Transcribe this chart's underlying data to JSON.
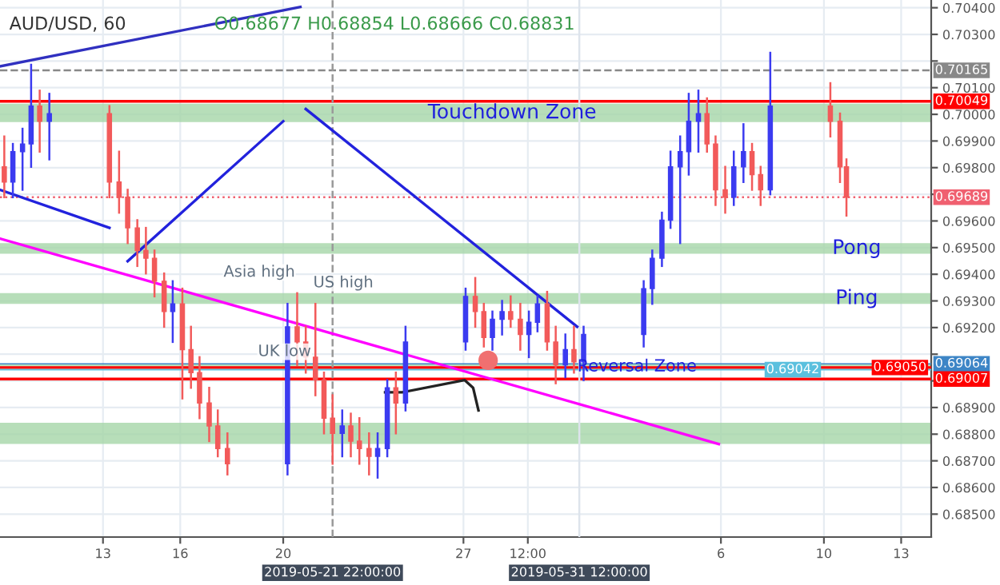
{
  "chart_data": {
    "type": "candlestick",
    "title": "AUD/USD, 60",
    "annotations": [
      "O0.68677 H0.68854 L0.68666 C0.68831",
      {
        "text": "Asia high",
        "x": "2019-05-20T11:00",
        "y": 0.69329
      },
      {
        "text": "US high",
        "x": "2019-05-21T04:00",
        "y": 0.69289
      },
      {
        "text": "UK low",
        "x": "2019-05-21T02:00",
        "y": 0.69031
      }
    ],
    "xlim": [
      "2019-05-09",
      "2019-06-14T04:00"
    ],
    "ylim": [
      0.68414,
      0.70429
    ],
    "xticks": [
      {
        "value": "2019-05-13",
        "label": "13"
      },
      {
        "value": "2019-05-16",
        "label": "16"
      },
      {
        "value": "2019-05-20",
        "label": "20"
      },
      {
        "value": "2019-05-27",
        "label": "27"
      },
      {
        "value": "2019-05-29T12:00",
        "label": "12:00"
      },
      {
        "value": "2019-06-06",
        "label": "6"
      },
      {
        "value": "2019-06-10",
        "label": "10"
      },
      {
        "value": "2019-06-13",
        "label": "13"
      }
    ],
    "yticks": [
      {
        "value": 0.685,
        "label": "0.68500"
      },
      {
        "value": 0.686,
        "label": "0.68600"
      },
      {
        "value": 0.687,
        "label": "0.68700"
      },
      {
        "value": 0.688,
        "label": "0.68800"
      },
      {
        "value": 0.689,
        "label": "0.68900"
      },
      {
        "value": 0.69,
        "label": null
      },
      {
        "value": 0.691,
        "label": null
      },
      {
        "value": 0.692,
        "label": "0.69200"
      },
      {
        "value": 0.693,
        "label": "0.69300"
      },
      {
        "value": 0.694,
        "label": "0.69400"
      },
      {
        "value": 0.695,
        "label": "0.69500"
      },
      {
        "value": 0.696,
        "label": "0.69600"
      },
      {
        "value": 0.697,
        "label": null
      },
      {
        "value": 0.698,
        "label": "0.69800"
      },
      {
        "value": 0.699,
        "label": "0.69900"
      },
      {
        "value": 0.7,
        "label": "0.70000"
      },
      {
        "value": 0.701,
        "label": "0.70100"
      },
      {
        "value": 0.702,
        "label": null
      },
      {
        "value": 0.703,
        "label": "0.70300"
      },
      {
        "value": 0.704,
        "label": "0.70400"
      }
    ],
    "grid": true,
    "legend": false,
    "bands": [
      {
        "axis": "y",
        "from": 0.69971,
        "to": 0.7004,
        "label": "Touchdown Zone",
        "color": "#a5d6a7"
      },
      {
        "axis": "y",
        "from": 0.69477,
        "to": 0.69517,
        "label": "Pong",
        "color": "#a5d6a7"
      },
      {
        "axis": "y",
        "from": 0.69289,
        "to": 0.69329,
        "label": "Ping",
        "color": "#a5d6a7"
      },
      {
        "axis": "y",
        "from": 0.69042,
        "to": 0.69064,
        "label": "Reversal Zone",
        "color": "#a5d6a7"
      },
      {
        "axis": "y",
        "from": 0.68763,
        "to": 0.68843,
        "color": "#a5d6a7"
      }
    ],
    "ref_lines": [
      {
        "axis": "y",
        "value": 0.70165,
        "label": "0.70165",
        "color": "#888888",
        "line_style": "dashed"
      },
      {
        "axis": "y",
        "value": 0.70049,
        "label": "0.70049",
        "color": "#ff0000",
        "line_style": "solid"
      },
      {
        "axis": "y",
        "value": 0.69689,
        "label": "0.69689",
        "color": "#f06070",
        "line_style": "dotted"
      },
      {
        "axis": "y",
        "value": 0.69064,
        "label": "0.69064",
        "color": "#3d85c6",
        "line_style": "solid"
      },
      {
        "axis": "y",
        "value": 0.6905,
        "label": "0.69050",
        "color": "#ff0000",
        "line_style": "solid"
      },
      {
        "axis": "y",
        "value": 0.69042,
        "label": "0.69042",
        "color": "#5bc0de",
        "line_style": "solid"
      },
      {
        "axis": "y",
        "value": 0.69007,
        "label": "0.69007",
        "color": "#ff0000",
        "line_style": "solid"
      },
      {
        "axis": "x",
        "value": "2019-05-21T22:00",
        "label": "2019-05-21 22:00:00",
        "color": "#999999",
        "line_style": "dashed"
      },
      {
        "axis": "x",
        "value": "2019-05-31T12:00",
        "label": "2019-05-31 12:00:00",
        "color": "#dde4ec",
        "line_style": "solid"
      }
    ],
    "series": [
      {
        "x": [
          "2019-05-09T04:00",
          "2019-05-09T12:00",
          "2019-05-09T21:00",
          "2019-05-10T05:00",
          "2019-05-10T13:00",
          "2019-05-10T22:00",
          "2019-05-13T06:00",
          "2019-05-13T15:00",
          "2019-05-13T23:00",
          "2019-05-14T08:00",
          "2019-05-14T16:00",
          "2019-05-15T00:00",
          "2019-05-15T09:00",
          "2019-05-15T17:00",
          "2019-05-16T02:00",
          "2019-05-16T10:00",
          "2019-05-16T18:00",
          "2019-05-17T03:00",
          "2019-05-17T11:00",
          "2019-05-17T20:00",
          "2019-05-20T04:00",
          "2019-05-20T13:00",
          "2019-05-20T21:00",
          "2019-05-21T06:00",
          "2019-05-21T14:00",
          "2019-05-21T22:00",
          "2019-05-22T07:00",
          "2019-05-22T15:00",
          "2019-05-22T23:00",
          "2019-05-23T08:00",
          "2019-05-23T16:00",
          "2019-05-24T01:00",
          "2019-05-24T09:00",
          "2019-05-24T18:00",
          "2019-05-27T02:00",
          "2019-05-27T11:00",
          "2019-05-27T19:00",
          "2019-05-28T03:00",
          "2019-05-28T12:00",
          "2019-05-28T20:00",
          "2019-05-29T05:00",
          "2019-05-29T13:00",
          "2019-05-29T21:00",
          "2019-05-30T06:00",
          "2019-05-30T14:00",
          "2019-05-30T23:00",
          "2019-05-31T07:00",
          "2019-05-31T16:00",
          "2019-06-03T00:00",
          "2019-06-03T08:00",
          "2019-06-03T17:00",
          "2019-06-04T01:00",
          "2019-06-04T10:00",
          "2019-06-04T18:00",
          "2019-06-05T03:00",
          "2019-06-05T11:00",
          "2019-06-05T19:00",
          "2019-06-06T04:00",
          "2019-06-06T12:00",
          "2019-06-06T21:00",
          "2019-06-07T05:00",
          "2019-06-07T13:00",
          "2019-06-07T22:00",
          "2019-06-10T06:00",
          "2019-06-10T15:00",
          "2019-06-10T21:00"
        ],
        "ohlc": [
          [
            0.69803,
            0.69917,
            0.69689,
            0.69746
          ],
          [
            0.69746,
            0.69889,
            0.69689,
            0.6986
          ],
          [
            0.6986,
            0.69946,
            0.69717,
            0.69889
          ],
          [
            0.69889,
            0.70186,
            0.69803,
            0.70031
          ],
          [
            0.70031,
            0.70089,
            0.6986,
            0.69974
          ],
          [
            0.69974,
            0.70077,
            0.69831,
            0.70003
          ],
          [
            0.70003,
            0.70031,
            0.69689,
            0.69746
          ],
          [
            0.69746,
            0.6986,
            0.69631,
            0.69689
          ],
          [
            0.69689,
            0.69717,
            0.69517,
            0.69574
          ],
          [
            0.69574,
            0.69603,
            0.69431,
            0.69489
          ],
          [
            0.69489,
            0.69574,
            0.69403,
            0.6946
          ],
          [
            0.6946,
            0.69489,
            0.69317,
            0.69374
          ],
          [
            0.69374,
            0.69403,
            0.69203,
            0.6926
          ],
          [
            0.6926,
            0.69374,
            0.69146,
            0.69289
          ],
          [
            0.69289,
            0.69346,
            0.68934,
            0.69117
          ],
          [
            0.69117,
            0.69203,
            0.68974,
            0.69031
          ],
          [
            0.69031,
            0.69089,
            0.6886,
            0.68917
          ],
          [
            0.68917,
            0.68974,
            0.68774,
            0.68831
          ],
          [
            0.68831,
            0.68889,
            0.68717,
            0.68746
          ],
          [
            0.68746,
            0.68803,
            0.68649,
            0.68689
          ],
          [
            0.68689,
            0.69289,
            0.68649,
            0.69203
          ],
          [
            0.69203,
            0.69329,
            0.6906,
            0.69146
          ],
          [
            0.69146,
            0.69203,
            0.69031,
            0.69089
          ],
          [
            0.69089,
            0.69289,
            0.68946,
            0.69003
          ],
          [
            0.69003,
            0.69031,
            0.68803,
            0.6886
          ],
          [
            0.6886,
            0.68946,
            0.68689,
            0.68803
          ],
          [
            0.68803,
            0.68889,
            0.68717,
            0.68831
          ],
          [
            0.68831,
            0.68877,
            0.68717,
            0.68774
          ],
          [
            0.68774,
            0.6886,
            0.68689,
            0.68746
          ],
          [
            0.68746,
            0.68803,
            0.68649,
            0.68717
          ],
          [
            0.68717,
            0.68803,
            0.68637,
            0.68746
          ],
          [
            0.68746,
            0.69003,
            0.68717,
            0.68974
          ],
          [
            0.68974,
            0.69031,
            0.68803,
            0.68917
          ],
          [
            0.68917,
            0.69203,
            0.68889,
            0.69146
          ],
          [
            0.69146,
            0.69346,
            0.69117,
            0.69317
          ],
          [
            0.69317,
            0.69386,
            0.69203,
            0.6926
          ],
          [
            0.6926,
            0.69289,
            0.69129,
            0.69163
          ],
          [
            0.69163,
            0.6926,
            0.69117,
            0.69231
          ],
          [
            0.69231,
            0.693,
            0.69174,
            0.6926
          ],
          [
            0.6926,
            0.69317,
            0.69203,
            0.69231
          ],
          [
            0.69231,
            0.69289,
            0.69117,
            0.69174
          ],
          [
            0.69174,
            0.6926,
            0.69089,
            0.6922
          ],
          [
            0.6922,
            0.69317,
            0.69186,
            0.69289
          ],
          [
            0.69289,
            0.69334,
            0.69117,
            0.69146
          ],
          [
            0.69146,
            0.69203,
            0.68991,
            0.6906
          ],
          [
            0.6906,
            0.69174,
            0.69014,
            0.69117
          ],
          [
            0.69117,
            0.69203,
            0.69031,
            0.69071
          ],
          [
            0.69071,
            0.69203,
            0.69003,
            0.69174
          ],
          [
            0.69174,
            0.69374,
            0.69129,
            0.69346
          ],
          [
            0.69346,
            0.69489,
            0.69289,
            0.6946
          ],
          [
            0.6946,
            0.69631,
            0.69431,
            0.69603
          ],
          [
            0.69603,
            0.6986,
            0.69574,
            0.69803
          ],
          [
            0.69803,
            0.69917,
            0.69517,
            0.6986
          ],
          [
            0.6986,
            0.70077,
            0.69774,
            0.69974
          ],
          [
            0.69974,
            0.70089,
            0.6986,
            0.70003
          ],
          [
            0.70003,
            0.7006,
            0.6986,
            0.69889
          ],
          [
            0.69889,
            0.69917,
            0.6966,
            0.69717
          ],
          [
            0.69717,
            0.69803,
            0.69631,
            0.69689
          ],
          [
            0.69689,
            0.6986,
            0.6966,
            0.69803
          ],
          [
            0.69803,
            0.69963,
            0.69746,
            0.6986
          ],
          [
            0.6986,
            0.69889,
            0.69717,
            0.69774
          ],
          [
            0.69774,
            0.69803,
            0.6966,
            0.69717
          ],
          [
            0.69717,
            0.70231,
            0.697,
            0.70031
          ],
          [
            0.70031,
            0.70117,
            0.69917,
            0.69974
          ],
          [
            0.69974,
            0.70003,
            0.69746,
            0.69803
          ],
          [
            0.69803,
            0.69831,
            0.6962,
            0.69689
          ]
        ],
        "colors": [
          "#f25a5a",
          "#3b3bf0",
          "#3b3bf0",
          "#3b3bf0",
          "#f25a5a",
          "#3b3bf0",
          "#f25a5a",
          "#f25a5a",
          "#f25a5a",
          "#f25a5a",
          "#f25a5a",
          "#f25a5a",
          "#f25a5a",
          "#3b3bf0",
          "#f25a5a",
          "#f25a5a",
          "#f25a5a",
          "#f25a5a",
          "#f25a5a",
          "#f25a5a",
          "#3b3bf0",
          "#f25a5a",
          "#f25a5a",
          "#f25a5a",
          "#f25a5a",
          "#f25a5a",
          "#3b3bf0",
          "#f25a5a",
          "#f25a5a",
          "#f25a5a",
          "#3b3bf0",
          "#3b3bf0",
          "#f25a5a",
          "#3b3bf0",
          "#3b3bf0",
          "#f25a5a",
          "#f25a5a",
          "#3b3bf0",
          "#3b3bf0",
          "#f25a5a",
          "#f25a5a",
          "#3b3bf0",
          "#3b3bf0",
          "#f25a5a",
          "#f25a5a",
          "#3b3bf0",
          "#f25a5a",
          "#3b3bf0",
          "#3b3bf0",
          "#3b3bf0",
          "#3b3bf0",
          "#3b3bf0",
          "#3b3bf0",
          "#3b3bf0",
          "#3b3bf0",
          "#f25a5a",
          "#f25a5a",
          "#f25a5a",
          "#3b3bf0",
          "#3b3bf0",
          "#f25a5a",
          "#f25a5a",
          "#3b3bf0",
          "#f25a5a",
          "#f25a5a",
          "#f25a5a"
        ]
      },
      {
        "type": "line",
        "color": "#ff00ff",
        "x": [
          "2019-05-09",
          "2019-06-05T22:00"
        ],
        "values": [
          0.69534,
          0.68763
        ]
      },
      {
        "type": "line",
        "color": "#3030c0",
        "x": [
          "2019-05-09",
          "2019-05-20T16:00"
        ],
        "values": [
          0.7018,
          0.70403
        ]
      },
      {
        "type": "line",
        "color": "#2222dd",
        "x": [
          "2019-05-09",
          "2019-05-13T06:00"
        ],
        "values": [
          0.69717,
          0.69574
        ]
      },
      {
        "type": "line",
        "color": "#2222dd",
        "x": [
          "2019-05-13T23:00",
          "2019-05-20"
        ],
        "values": [
          0.69449,
          0.69974
        ]
      },
      {
        "type": "line",
        "color": "#2222dd",
        "x": [
          "2019-05-20T21:00",
          "2019-05-31T10:00"
        ],
        "values": [
          0.7002,
          0.69203
        ]
      },
      {
        "type": "line",
        "color": "#222222",
        "x": [
          "2019-05-23T23:00",
          "2019-05-24T15:00",
          "2019-05-27T01:00",
          "2019-05-27T09:00",
          "2019-05-27T14:00"
        ],
        "values": [
          0.68957,
          0.68957,
          0.69003,
          0.68974,
          0.68889
        ]
      },
      {
        "type": "scatter",
        "color": "#f07070",
        "marker": "circle",
        "x": [
          "2019-05-27T23:00"
        ],
        "values": [
          0.69077
        ]
      }
    ]
  }
}
